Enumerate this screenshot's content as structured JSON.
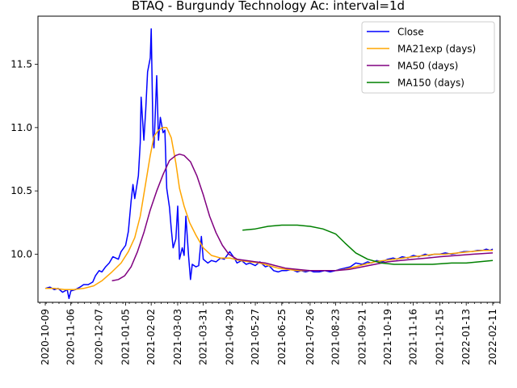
{
  "chart_data": {
    "type": "line",
    "title": "BTAQ - Burgundy Technology Ac: interval=1d",
    "xlabel": "",
    "ylabel": "",
    "xlim": [
      "2020-10-01",
      "2022-02-19"
    ],
    "ylim": [
      9.62,
      11.88
    ],
    "x_tick_labels": [
      "2020-10-09",
      "2020-11-06",
      "2020-12-07",
      "2021-01-05",
      "2021-02-02",
      "2021-03-03",
      "2021-03-31",
      "2021-04-29",
      "2021-05-27",
      "2021-06-25",
      "2021-07-26",
      "2021-08-23",
      "2021-09-21",
      "2021-10-19",
      "2021-11-16",
      "2021-12-15",
      "2022-01-13",
      "2022-02-11"
    ],
    "y_ticks": [
      10.0,
      10.5,
      11.0,
      11.5
    ],
    "y_tick_labels": [
      "10.0",
      "10.5",
      "11.0",
      "11.5"
    ],
    "legend_position": "top-right",
    "series": [
      {
        "name": "Close",
        "color": "#0000ff",
        "points": [
          [
            "2020-10-09",
            9.73
          ],
          [
            "2020-10-14",
            9.74
          ],
          [
            "2020-10-19",
            9.72
          ],
          [
            "2020-10-23",
            9.73
          ],
          [
            "2020-10-28",
            9.7
          ],
          [
            "2020-11-02",
            9.72
          ],
          [
            "2020-11-04",
            9.65
          ],
          [
            "2020-11-06",
            9.71
          ],
          [
            "2020-11-11",
            9.72
          ],
          [
            "2020-11-16",
            9.74
          ],
          [
            "2020-11-20",
            9.76
          ],
          [
            "2020-11-25",
            9.76
          ],
          [
            "2020-11-30",
            9.78
          ],
          [
            "2020-12-03",
            9.83
          ],
          [
            "2020-12-07",
            9.87
          ],
          [
            "2020-12-10",
            9.86
          ],
          [
            "2020-12-14",
            9.9
          ],
          [
            "2020-12-18",
            9.93
          ],
          [
            "2020-12-22",
            9.98
          ],
          [
            "2020-12-28",
            9.96
          ],
          [
            "2020-12-31",
            10.02
          ],
          [
            "2021-01-05",
            10.07
          ],
          [
            "2021-01-08",
            10.18
          ],
          [
            "2021-01-11",
            10.42
          ],
          [
            "2021-01-13",
            10.55
          ],
          [
            "2021-01-15",
            10.44
          ],
          [
            "2021-01-19",
            10.62
          ],
          [
            "2021-01-21",
            10.88
          ],
          [
            "2021-01-22",
            11.24
          ],
          [
            "2021-01-25",
            10.9
          ],
          [
            "2021-01-27",
            11.14
          ],
          [
            "2021-01-29",
            11.44
          ],
          [
            "2021-02-01",
            11.55
          ],
          [
            "2021-02-02",
            11.78
          ],
          [
            "2021-02-04",
            10.95
          ],
          [
            "2021-02-05",
            10.84
          ],
          [
            "2021-02-08",
            11.41
          ],
          [
            "2021-02-10",
            10.9
          ],
          [
            "2021-02-12",
            11.08
          ],
          [
            "2021-02-15",
            10.96
          ],
          [
            "2021-02-17",
            10.98
          ],
          [
            "2021-02-19",
            10.52
          ],
          [
            "2021-02-22",
            10.37
          ],
          [
            "2021-02-24",
            10.2
          ],
          [
            "2021-02-26",
            10.05
          ],
          [
            "2021-03-01",
            10.12
          ],
          [
            "2021-03-03",
            10.38
          ],
          [
            "2021-03-05",
            9.96
          ],
          [
            "2021-03-08",
            10.05
          ],
          [
            "2021-03-10",
            9.99
          ],
          [
            "2021-03-12",
            10.3
          ],
          [
            "2021-03-15",
            9.98
          ],
          [
            "2021-03-17",
            9.8
          ],
          [
            "2021-03-19",
            9.92
          ],
          [
            "2021-03-23",
            9.9
          ],
          [
            "2021-03-26",
            9.91
          ],
          [
            "2021-03-29",
            10.14
          ],
          [
            "2021-03-31",
            9.96
          ],
          [
            "2021-04-05",
            9.93
          ],
          [
            "2021-04-09",
            9.95
          ],
          [
            "2021-04-14",
            9.94
          ],
          [
            "2021-04-19",
            9.97
          ],
          [
            "2021-04-23",
            9.96
          ],
          [
            "2021-04-29",
            10.02
          ],
          [
            "2021-05-04",
            9.97
          ],
          [
            "2021-05-07",
            9.93
          ],
          [
            "2021-05-12",
            9.95
          ],
          [
            "2021-05-17",
            9.92
          ],
          [
            "2021-05-21",
            9.93
          ],
          [
            "2021-05-27",
            9.91
          ],
          [
            "2021-06-01",
            9.94
          ],
          [
            "2021-06-07",
            9.9
          ],
          [
            "2021-06-11",
            9.91
          ],
          [
            "2021-06-16",
            9.87
          ],
          [
            "2021-06-21",
            9.86
          ],
          [
            "2021-06-25",
            9.87
          ],
          [
            "2021-06-30",
            9.87
          ],
          [
            "2021-07-06",
            9.88
          ],
          [
            "2021-07-12",
            9.86
          ],
          [
            "2021-07-16",
            9.87
          ],
          [
            "2021-07-21",
            9.86
          ],
          [
            "2021-07-26",
            9.87
          ],
          [
            "2021-07-30",
            9.86
          ],
          [
            "2021-08-05",
            9.86
          ],
          [
            "2021-08-11",
            9.87
          ],
          [
            "2021-08-17",
            9.86
          ],
          [
            "2021-08-23",
            9.87
          ],
          [
            "2021-08-27",
            9.88
          ],
          [
            "2021-09-02",
            9.89
          ],
          [
            "2021-09-08",
            9.9
          ],
          [
            "2021-09-14",
            9.93
          ],
          [
            "2021-09-21",
            9.92
          ],
          [
            "2021-09-27",
            9.94
          ],
          [
            "2021-10-01",
            9.93
          ],
          [
            "2021-10-07",
            9.95
          ],
          [
            "2021-10-13",
            9.94
          ],
          [
            "2021-10-19",
            9.96
          ],
          [
            "2021-10-25",
            9.97
          ],
          [
            "2021-10-29",
            9.96
          ],
          [
            "2021-11-04",
            9.98
          ],
          [
            "2021-11-10",
            9.97
          ],
          [
            "2021-11-16",
            9.99
          ],
          [
            "2021-11-22",
            9.98
          ],
          [
            "2021-11-29",
            10.0
          ],
          [
            "2021-12-03",
            9.99
          ],
          [
            "2021-12-09",
            10.0
          ],
          [
            "2021-12-15",
            10.0
          ],
          [
            "2021-12-21",
            10.01
          ],
          [
            "2021-12-28",
            10.0
          ],
          [
            "2022-01-04",
            10.01
          ],
          [
            "2022-01-10",
            10.02
          ],
          [
            "2022-01-13",
            10.02
          ],
          [
            "2022-01-19",
            10.02
          ],
          [
            "2022-01-25",
            10.03
          ],
          [
            "2022-01-31",
            10.03
          ],
          [
            "2022-02-04",
            10.04
          ],
          [
            "2022-02-08",
            10.03
          ],
          [
            "2022-02-11",
            10.04
          ]
        ]
      },
      {
        "name": "MA21exp (days)",
        "color": "#ffa500",
        "points": [
          [
            "2020-10-09",
            9.73
          ],
          [
            "2020-10-19",
            9.73
          ],
          [
            "2020-10-30",
            9.72
          ],
          [
            "2020-11-09",
            9.72
          ],
          [
            "2020-11-20",
            9.73
          ],
          [
            "2020-12-01",
            9.75
          ],
          [
            "2020-12-10",
            9.79
          ],
          [
            "2020-12-21",
            9.86
          ],
          [
            "2020-12-31",
            9.93
          ],
          [
            "2021-01-08",
            10.02
          ],
          [
            "2021-01-15",
            10.13
          ],
          [
            "2021-01-21",
            10.3
          ],
          [
            "2021-01-26",
            10.52
          ],
          [
            "2021-02-01",
            10.78
          ],
          [
            "2021-02-05",
            10.93
          ],
          [
            "2021-02-10",
            10.98
          ],
          [
            "2021-02-15",
            11.0
          ],
          [
            "2021-02-19",
            11.0
          ],
          [
            "2021-02-24",
            10.92
          ],
          [
            "2021-03-01",
            10.72
          ],
          [
            "2021-03-05",
            10.52
          ],
          [
            "2021-03-10",
            10.38
          ],
          [
            "2021-03-16",
            10.25
          ],
          [
            "2021-03-23",
            10.15
          ],
          [
            "2021-03-31",
            10.05
          ],
          [
            "2021-04-09",
            9.99
          ],
          [
            "2021-04-19",
            9.97
          ],
          [
            "2021-04-29",
            9.97
          ],
          [
            "2021-05-10",
            9.95
          ],
          [
            "2021-05-21",
            9.94
          ],
          [
            "2021-06-01",
            9.93
          ],
          [
            "2021-06-11",
            9.91
          ],
          [
            "2021-06-21",
            9.89
          ],
          [
            "2021-07-01",
            9.88
          ],
          [
            "2021-07-12",
            9.87
          ],
          [
            "2021-07-22",
            9.87
          ],
          [
            "2021-08-02",
            9.87
          ],
          [
            "2021-08-12",
            9.87
          ],
          [
            "2021-08-23",
            9.87
          ],
          [
            "2021-09-02",
            9.88
          ],
          [
            "2021-09-13",
            9.9
          ],
          [
            "2021-09-24",
            9.92
          ],
          [
            "2021-10-05",
            9.94
          ],
          [
            "2021-10-15",
            9.95
          ],
          [
            "2021-10-26",
            9.96
          ],
          [
            "2021-11-05",
            9.97
          ],
          [
            "2021-11-16",
            9.98
          ],
          [
            "2021-11-29",
            9.99
          ],
          [
            "2021-12-09",
            10.0
          ],
          [
            "2021-12-21",
            10.0
          ],
          [
            "2022-01-04",
            10.01
          ],
          [
            "2022-01-18",
            10.02
          ],
          [
            "2022-02-01",
            10.03
          ],
          [
            "2022-02-11",
            10.03
          ]
        ]
      },
      {
        "name": "MA50 (days)",
        "color": "#800080",
        "points": [
          [
            "2020-12-21",
            9.79
          ],
          [
            "2020-12-28",
            9.8
          ],
          [
            "2021-01-04",
            9.83
          ],
          [
            "2021-01-11",
            9.9
          ],
          [
            "2021-01-18",
            10.02
          ],
          [
            "2021-01-25",
            10.17
          ],
          [
            "2021-02-01",
            10.35
          ],
          [
            "2021-02-08",
            10.5
          ],
          [
            "2021-02-15",
            10.63
          ],
          [
            "2021-02-22",
            10.74
          ],
          [
            "2021-03-01",
            10.78
          ],
          [
            "2021-03-05",
            10.79
          ],
          [
            "2021-03-10",
            10.78
          ],
          [
            "2021-03-17",
            10.73
          ],
          [
            "2021-03-24",
            10.62
          ],
          [
            "2021-03-31",
            10.47
          ],
          [
            "2021-04-07",
            10.3
          ],
          [
            "2021-04-14",
            10.17
          ],
          [
            "2021-04-21",
            10.07
          ],
          [
            "2021-04-28",
            10.0
          ],
          [
            "2021-05-07",
            9.96
          ],
          [
            "2021-05-17",
            9.95
          ],
          [
            "2021-05-27",
            9.94
          ],
          [
            "2021-06-07",
            9.93
          ],
          [
            "2021-06-18",
            9.91
          ],
          [
            "2021-06-29",
            9.89
          ],
          [
            "2021-07-12",
            9.88
          ],
          [
            "2021-07-26",
            9.87
          ],
          [
            "2021-08-09",
            9.87
          ],
          [
            "2021-08-23",
            9.87
          ],
          [
            "2021-09-07",
            9.88
          ],
          [
            "2021-09-21",
            9.9
          ],
          [
            "2021-10-05",
            9.92
          ],
          [
            "2021-10-19",
            9.94
          ],
          [
            "2021-11-02",
            9.95
          ],
          [
            "2021-11-16",
            9.96
          ],
          [
            "2021-12-01",
            9.97
          ],
          [
            "2021-12-15",
            9.98
          ],
          [
            "2022-01-03",
            9.99
          ],
          [
            "2022-01-20",
            10.0
          ],
          [
            "2022-02-11",
            10.01
          ]
        ]
      },
      {
        "name": "MA150 (days)",
        "color": "#008000",
        "points": [
          [
            "2021-05-13",
            10.19
          ],
          [
            "2021-05-27",
            10.2
          ],
          [
            "2021-06-10",
            10.22
          ],
          [
            "2021-06-25",
            10.23
          ],
          [
            "2021-07-12",
            10.23
          ],
          [
            "2021-07-26",
            10.22
          ],
          [
            "2021-08-09",
            10.2
          ],
          [
            "2021-08-23",
            10.16
          ],
          [
            "2021-09-02",
            10.09
          ],
          [
            "2021-09-14",
            10.01
          ],
          [
            "2021-09-27",
            9.96
          ],
          [
            "2021-10-12",
            9.93
          ],
          [
            "2021-10-26",
            9.92
          ],
          [
            "2021-11-16",
            9.92
          ],
          [
            "2021-12-07",
            9.92
          ],
          [
            "2021-12-28",
            9.93
          ],
          [
            "2022-01-13",
            9.93
          ],
          [
            "2022-01-27",
            9.94
          ],
          [
            "2022-02-11",
            9.95
          ]
        ]
      }
    ]
  }
}
